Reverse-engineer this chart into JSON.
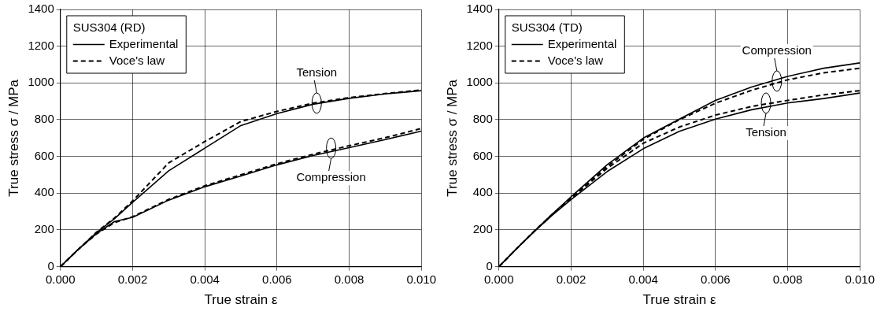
{
  "chart_data": [
    {
      "type": "line",
      "legend_title": "SUS304 (RD)",
      "xlabel": "True strain ε",
      "ylabel": "True stress σ / MPa",
      "x": [
        0,
        0.0005,
        0.001,
        0.0015,
        0.002,
        0.003,
        0.004,
        0.005,
        0.006,
        0.007,
        0.008,
        0.009,
        0.01
      ],
      "series": [
        {
          "name": "Experimental",
          "color": "#000000",
          "line_style": "solid",
          "values": [
            0,
            95,
            185,
            261,
            350,
            522,
            645,
            768,
            833,
            884,
            916,
            940,
            958
          ]
        },
        {
          "name": "Voce's law",
          "color": "#000000",
          "line_style": "dashed",
          "values": [
            0,
            95,
            188,
            265,
            358,
            565,
            681,
            790,
            845,
            890,
            920,
            942,
            962
          ]
        },
        {
          "color": "#000000",
          "line_style": "solid",
          "values": [
            0,
            95,
            180,
            246,
            268,
            362,
            435,
            493,
            554,
            605,
            648,
            692,
            738
          ]
        },
        {
          "color": "#000000",
          "line_style": "dashed",
          "values": [
            0,
            95,
            178,
            240,
            272,
            366,
            440,
            500,
            560,
            612,
            658,
            702,
            752
          ]
        }
      ],
      "xlim": [
        0,
        0.01
      ],
      "xticks": [
        {
          "value": 0,
          "label": "0.000"
        },
        {
          "value": 0.002,
          "label": "0.002"
        },
        {
          "value": 0.004,
          "label": "0.004"
        },
        {
          "value": 0.006,
          "label": "0.006"
        },
        {
          "value": 0.008,
          "label": "0.008"
        },
        {
          "value": 0.01,
          "label": "0.010"
        }
      ],
      "ylim": [
        0,
        1400
      ],
      "yticks": [
        0,
        200,
        400,
        600,
        800,
        1000,
        1200,
        1400
      ],
      "grid": true,
      "legend": "top left",
      "marker": "none",
      "annotations": [
        {
          "text": "Tension",
          "x": 0.0071,
          "y": 890
        },
        {
          "text": "Compression",
          "x": 0.0075,
          "y": 645
        }
      ]
    },
    {
      "type": "line",
      "legend_title": "SUS304 (TD)",
      "xlabel": "True strain ε",
      "ylabel": "True stress σ / MPa",
      "x": [
        0,
        0.0005,
        0.001,
        0.0015,
        0.002,
        0.003,
        0.004,
        0.005,
        0.006,
        0.007,
        0.008,
        0.009,
        0.01
      ],
      "series": [
        {
          "name": "Experimental",
          "color": "#000000",
          "line_style": "solid",
          "values": [
            0,
            100,
            197,
            290,
            380,
            555,
            700,
            803,
            905,
            978,
            1036,
            1080,
            1109
          ]
        },
        {
          "name": "Voce's law",
          "color": "#000000",
          "line_style": "dashed",
          "values": [
            0,
            100,
            197,
            288,
            375,
            545,
            693,
            800,
            890,
            960,
            1017,
            1055,
            1080
          ]
        },
        {
          "color": "#000000",
          "line_style": "solid",
          "values": [
            0,
            100,
            195,
            284,
            365,
            518,
            642,
            737,
            803,
            854,
            891,
            915,
            945
          ]
        },
        {
          "color": "#000000",
          "line_style": "dashed",
          "values": [
            0,
            100,
            197,
            288,
            372,
            535,
            672,
            760,
            825,
            872,
            905,
            935,
            958
          ]
        }
      ],
      "xlim": [
        0,
        0.01
      ],
      "xticks": [
        {
          "value": 0,
          "label": "0.000"
        },
        {
          "value": 0.002,
          "label": "0.002"
        },
        {
          "value": 0.004,
          "label": "0.004"
        },
        {
          "value": 0.006,
          "label": "0.006"
        },
        {
          "value": 0.008,
          "label": "0.008"
        },
        {
          "value": 0.01,
          "label": "0.010"
        }
      ],
      "ylim": [
        0,
        1400
      ],
      "yticks": [
        0,
        200,
        400,
        600,
        800,
        1000,
        1200,
        1400
      ],
      "grid": true,
      "legend": "top left",
      "marker": "none",
      "annotations": [
        {
          "text": "Compression",
          "x": 0.0077,
          "y": 1010
        },
        {
          "text": "Tension",
          "x": 0.0074,
          "y": 890
        }
      ]
    }
  ]
}
